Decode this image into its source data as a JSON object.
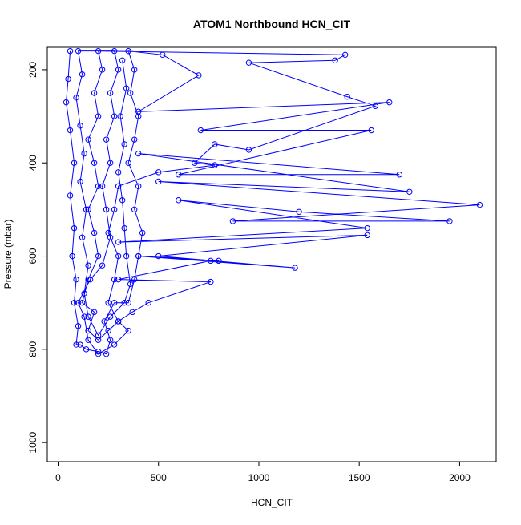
{
  "chart_data": {
    "type": "line",
    "title": "ATOM1 Northbound HCN_CIT",
    "x_label": "HCN_CIT",
    "y_label": "Pressure (mbar)",
    "color": "#0000ff",
    "y_reversed": true,
    "xlim": [
      -54,
      2182
    ],
    "ylim": [
      1041,
      152
    ],
    "xticks": [
      0,
      500,
      1000,
      1500,
      2000
    ],
    "yticks": [
      200,
      400,
      600,
      800,
      1000
    ],
    "x": [
      60,
      50,
      40,
      60,
      80,
      60,
      80,
      70,
      90,
      80,
      100,
      90,
      110,
      140,
      200,
      240,
      260,
      230,
      280,
      350,
      380,
      400,
      420,
      380,
      400,
      350,
      380,
      400,
      360,
      380,
      350,
      520,
      700,
      400,
      1650,
      710,
      1560,
      600,
      1700,
      400,
      1750,
      500,
      2100,
      870,
      1950,
      1200,
      600,
      1540,
      300,
      1540,
      500,
      1180,
      400,
      800,
      760,
      300,
      760,
      450,
      370,
      300,
      250,
      200,
      150,
      180,
      120,
      150,
      200,
      180,
      150,
      200,
      180,
      150,
      200,
      180,
      220,
      200,
      1430,
      1380,
      950,
      1440,
      1580,
      950,
      780,
      680,
      780,
      500,
      300,
      280,
      250,
      300,
      280,
      250,
      300,
      350,
      280,
      200,
      150,
      130,
      100,
      160,
      220,
      260,
      240,
      220,
      260,
      240,
      280,
      260,
      300,
      280,
      100,
      120,
      90,
      110,
      130,
      110,
      140,
      120,
      150,
      130,
      150,
      200,
      260,
      330,
      360,
      340,
      330,
      320,
      300,
      330,
      310,
      340,
      320
    ],
    "y": [
      160,
      220,
      270,
      330,
      400,
      470,
      540,
      600,
      650,
      700,
      750,
      790,
      790,
      800,
      805,
      810,
      780,
      740,
      700,
      700,
      650,
      600,
      550,
      500,
      450,
      400,
      350,
      300,
      250,
      200,
      160,
      168,
      212,
      290,
      270,
      330,
      330,
      425,
      425,
      380,
      462,
      440,
      490,
      525,
      525,
      505,
      480,
      540,
      570,
      555,
      600,
      625,
      600,
      610,
      610,
      650,
      655,
      700,
      720,
      740,
      760,
      780,
      760,
      720,
      700,
      650,
      600,
      550,
      500,
      450,
      400,
      350,
      300,
      250,
      200,
      160,
      168,
      180,
      185,
      258,
      278,
      372,
      360,
      400,
      405,
      420,
      450,
      500,
      550,
      600,
      650,
      700,
      740,
      760,
      790,
      810,
      780,
      730,
      700,
      650,
      620,
      560,
      500,
      450,
      400,
      350,
      300,
      250,
      200,
      160,
      160,
      210,
      260,
      320,
      380,
      440,
      500,
      560,
      620,
      680,
      730,
      770,
      730,
      700,
      660,
      600,
      540,
      480,
      420,
      360,
      300,
      240,
      180
    ]
  }
}
